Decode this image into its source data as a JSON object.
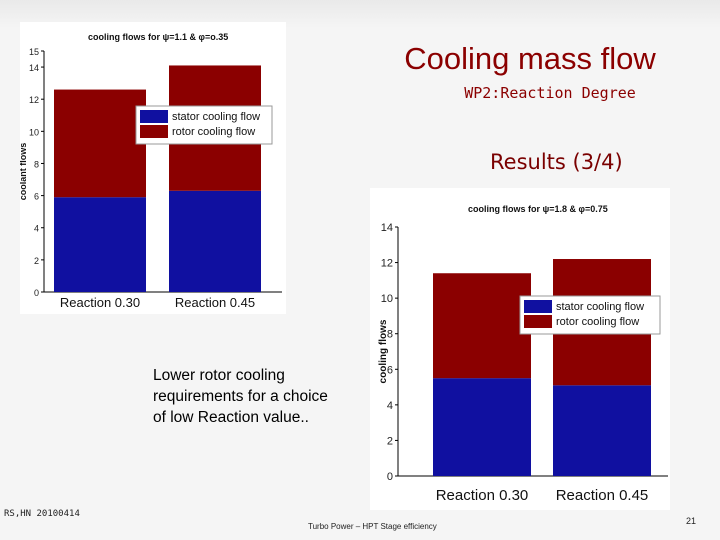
{
  "slide": {
    "title": "Cooling mass flow",
    "subtitle": "WP2:Reaction Degree",
    "section": "Results (3/4)",
    "note": "Lower rotor cooling requirements for a choice of low Reaction value..",
    "footer_left": "RS,HN 20100414",
    "footer_center": "Turbo Power – HPT Stage efficiency",
    "page_number": "21",
    "colors": {
      "title": "#8b0000",
      "stator": "#1010a0",
      "rotor": "#8b0000"
    }
  },
  "chart_data": [
    {
      "type": "bar",
      "stacked": true,
      "title": "cooling flows for ψ=1.1 & φ=o.35",
      "ylabel": "coolant flows",
      "categories": [
        "Reaction 0.30",
        "Reaction 0.45"
      ],
      "series": [
        {
          "name": "stator cooling flow",
          "values": [
            5.9,
            6.3
          ]
        },
        {
          "name": "rotor cooling flow",
          "values": [
            6.7,
            7.8
          ]
        }
      ],
      "ylim": [
        0,
        15
      ],
      "yticks": [
        "0",
        "2",
        "4",
        "6",
        "8",
        "10",
        "12",
        "14",
        "15"
      ],
      "legend": "top-right"
    },
    {
      "type": "bar",
      "stacked": true,
      "title": "cooling flows for ψ=1.8 & φ=0.75",
      "ylabel": "cooling flows",
      "categories": [
        "Reaction 0.30",
        "Reaction 0.45"
      ],
      "series": [
        {
          "name": "stator cooling flow",
          "values": [
            5.5,
            5.1
          ]
        },
        {
          "name": "rotor cooling flow",
          "values": [
            5.9,
            7.1
          ]
        }
      ],
      "ylim": [
        0,
        14
      ],
      "yticks": [
        "0",
        "2",
        "4",
        "6",
        "8",
        "10",
        "12",
        "14"
      ],
      "legend": "middle-right"
    }
  ]
}
